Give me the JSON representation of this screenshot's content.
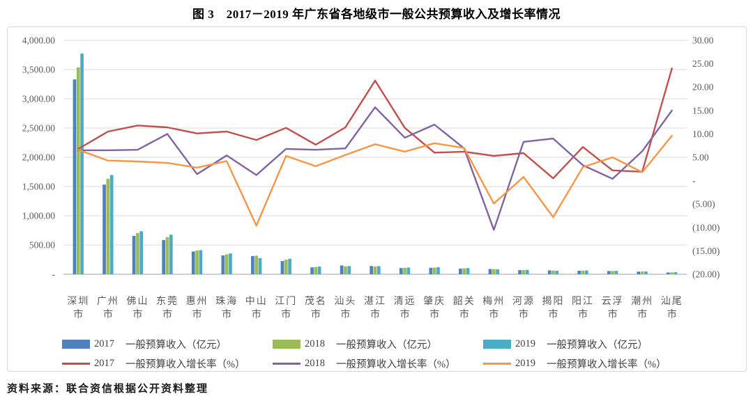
{
  "page": {
    "title": "图 3　2017－2019 年广东省各地级市一般公共预算收入及增长率情况",
    "source": "资料来源：联合资信根据公开资料整理"
  },
  "chart_data": {
    "type": "bar",
    "subtype": "combo-bar-line-dual-axis",
    "title": "图 3　2017－2019 年广东省各地级市一般公共预算收入及增长率情况",
    "categories": [
      "深圳市",
      "广州市",
      "佛山市",
      "东莞市",
      "惠州市",
      "珠海市",
      "中山市",
      "江门市",
      "茂名市",
      "汕头市",
      "湛江市",
      "清远市",
      "肇庆市",
      "韶关市",
      "梅州市",
      "河源市",
      "揭阳市",
      "阳江市",
      "云浮市",
      "潮州市",
      "汕尾市"
    ],
    "left_axis": {
      "min": 0,
      "max": 4000,
      "step": 500,
      "labels": [
        "4,000.00",
        "3,500.00",
        "3,000.00",
        "2,500.00",
        "2,000.00",
        "1,500.00",
        "1,000.00",
        "500.00",
        "-"
      ]
    },
    "right_axis": {
      "min": -20,
      "max": 30,
      "step": 5,
      "labels": [
        "30.00",
        "25.00",
        "20.00",
        "15.00",
        "10.00",
        "5.00",
        "-",
        "(5.00)",
        "(10.00)",
        "(15.00)",
        "(20.00)"
      ]
    },
    "grid": true,
    "legend_position": "bottom",
    "colors": {
      "bar2017": "#4F81BD",
      "bar2018": "#9BBB59",
      "bar2019": "#4BACC6",
      "line2017": "#C0504D",
      "line2018": "#8064A2",
      "line2019": "#F79646",
      "gridline": "#d9d9d9",
      "baseline": "#bfbfbf",
      "axis_text": "#595959"
    },
    "series": [
      {
        "id": "rev2017",
        "kind": "bar",
        "axis": "left",
        "year": "2017",
        "legend_label": "一般预算收入（亿元）",
        "color": "#4F81BD",
        "values": [
          3332,
          1533,
          655,
          585,
          389,
          322,
          311,
          225,
          118,
          150,
          140,
          106,
          110,
          95,
          90,
          70,
          65,
          60,
          55,
          45,
          30
        ]
      },
      {
        "id": "rev2018",
        "kind": "bar",
        "axis": "left",
        "year": "2018",
        "legend_label": "一般预算收入（亿元）",
        "color": "#9BBB59",
        "values": [
          3538,
          1632,
          705,
          635,
          406,
          340,
          318,
          248,
          124,
          135,
          133,
          110,
          112,
          100,
          87,
          72,
          62,
          62,
          56,
          46,
          32
        ]
      },
      {
        "id": "rev2019",
        "kind": "bar",
        "axis": "left",
        "year": "2019",
        "legend_label": "一般预算收入（亿元）",
        "color": "#4BACC6",
        "values": [
          3773,
          1697,
          735,
          675,
          412,
          355,
          276,
          264,
          132,
          140,
          138,
          115,
          120,
          105,
          83,
          74,
          60,
          64,
          58,
          47,
          35
        ]
      },
      {
        "id": "gr2017",
        "kind": "line",
        "axis": "right",
        "year": "2017",
        "legend_label": "一般预算收入增长率（%）",
        "color": "#C0504D",
        "values": [
          6.8,
          10.5,
          11.8,
          11.4,
          10.1,
          10.5,
          8.7,
          11.3,
          7.7,
          11.4,
          21.4,
          11.3,
          6.0,
          6.2,
          5.3,
          5.9,
          0.5,
          7.2,
          2.2,
          1.9,
          24.0
        ]
      },
      {
        "id": "gr2018",
        "kind": "line",
        "axis": "right",
        "year": "2018",
        "legend_label": "一般预算收入增长率（%）",
        "color": "#8064A2",
        "values": [
          6.5,
          6.5,
          6.6,
          10.0,
          1.4,
          5.4,
          1.2,
          6.8,
          6.6,
          6.9,
          15.7,
          9.2,
          12.0,
          6.9,
          -10.5,
          8.3,
          9.0,
          3.3,
          0.4,
          6.3,
          15.0
        ]
      },
      {
        "id": "gr2019",
        "kind": "line",
        "axis": "right",
        "year": "2019",
        "legend_label": "一般预算收入增长率（%）",
        "color": "#F79646",
        "values": [
          6.6,
          4.3,
          4.1,
          3.8,
          2.8,
          4.2,
          -9.6,
          5.3,
          3.1,
          5.5,
          7.8,
          6.2,
          8.0,
          7.0,
          -4.9,
          0.8,
          -7.8,
          2.9,
          5.0,
          1.8,
          9.6
        ]
      }
    ]
  }
}
